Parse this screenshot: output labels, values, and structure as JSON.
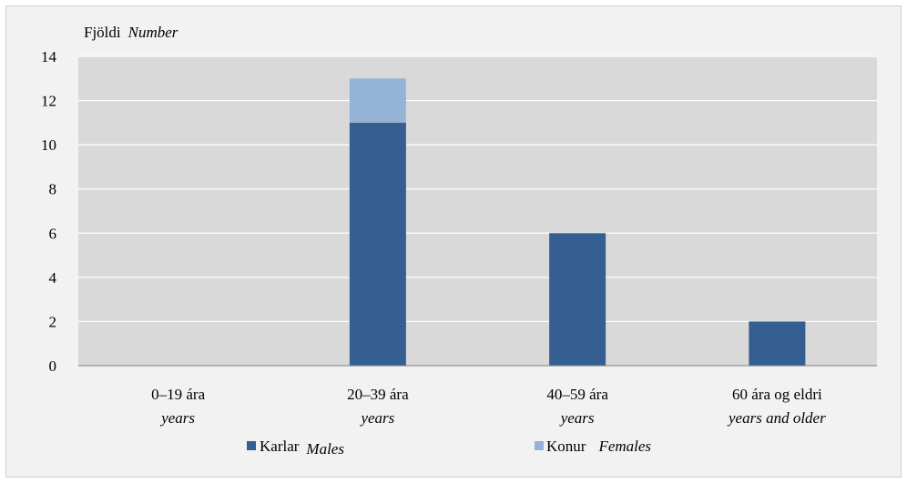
{
  "chart_data": {
    "type": "bar",
    "stacked": true,
    "ylabel": "Fjöldi",
    "ylabel_en": "Number",
    "ylim": [
      0,
      14
    ],
    "yticks": [
      "0",
      "2",
      "4",
      "6",
      "8",
      "10",
      "12",
      "14"
    ],
    "grid": true,
    "legend_position": "bottom",
    "categories": [
      {
        "is": "0–19 ára",
        "en": "years"
      },
      {
        "is": "20–39 ára",
        "en": "years"
      },
      {
        "is": "40–59 ára",
        "en": "years"
      },
      {
        "is": "60 ára og eldri",
        "en": "years and older"
      }
    ],
    "series": [
      {
        "name": "Karlar",
        "name_en": "Males",
        "color": "#355f91",
        "values": [
          0,
          11,
          6,
          2
        ]
      },
      {
        "name": "Konur",
        "name_en": "Females",
        "color": "#95b3d7",
        "values": [
          0,
          2,
          0,
          0
        ]
      }
    ]
  }
}
